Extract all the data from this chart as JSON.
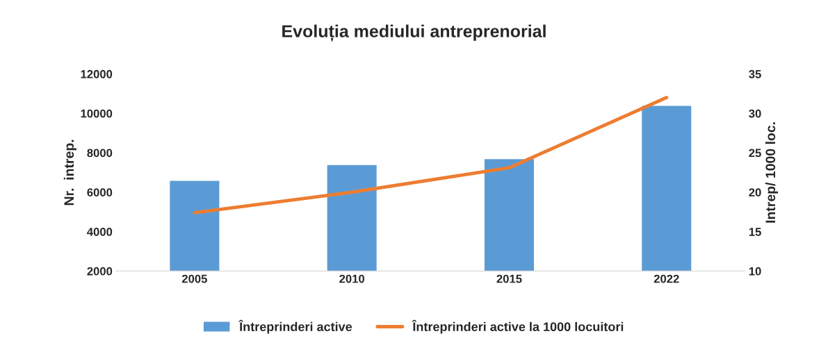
{
  "chart_data": {
    "type": "bar",
    "title": "Evoluția mediului antreprenorial",
    "categories": [
      "2005",
      "2010",
      "2015",
      "2022"
    ],
    "series": [
      {
        "name": "Întreprinderi active",
        "color": "#5b9bd5",
        "values": [
          6600,
          7400,
          7700,
          10400
        ]
      },
      {
        "name": "Întreprinderi active la 1000 locuitori",
        "color": "#ed7d31",
        "type": "line",
        "axis": "y2",
        "values": [
          17.4,
          20.0,
          23.1,
          32.0
        ]
      }
    ],
    "ylabel": "Nr.  intrep.",
    "y2label": "Intrep/ 1000 loc.",
    "ylim": [
      2000,
      12000
    ],
    "yticks": [
      2000,
      4000,
      6000,
      8000,
      10000,
      12000
    ],
    "y2lim": [
      10,
      35
    ],
    "y2ticks": [
      10,
      15,
      20,
      25,
      30,
      35
    ],
    "grid": false,
    "legend": "bottom",
    "marker": "none"
  }
}
